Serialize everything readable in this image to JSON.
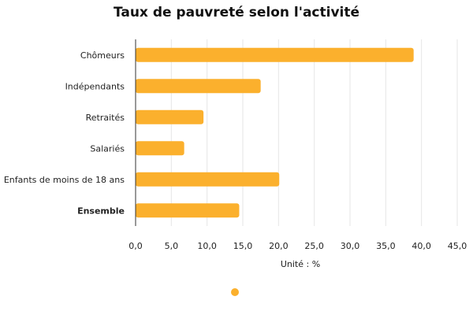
{
  "chart_data": {
    "type": "bar",
    "orientation": "horizontal",
    "title": "Taux de pauvreté selon l'activité",
    "xlabel": "Unité : %",
    "ylabel": "",
    "categories": [
      "Chômeurs",
      "Indépendants",
      "Retraités",
      "Salariés",
      "Enfants de moins de 18 ans",
      "Ensemble"
    ],
    "bold_categories": [
      "Ensemble"
    ],
    "values": [
      38.9,
      17.5,
      9.5,
      6.8,
      20.1,
      14.5
    ],
    "xlim": [
      0,
      45
    ],
    "ticks": [
      "0,0",
      "5,0",
      "10,0",
      "15,0",
      "20,0",
      "25,0",
      "30,0",
      "35,0",
      "40,0",
      "45,0"
    ],
    "tick_values": [
      0,
      5,
      10,
      15,
      20,
      25,
      30,
      35,
      40,
      45
    ],
    "grid": true,
    "legend": "bottom-center",
    "color": "#FBB02D"
  }
}
